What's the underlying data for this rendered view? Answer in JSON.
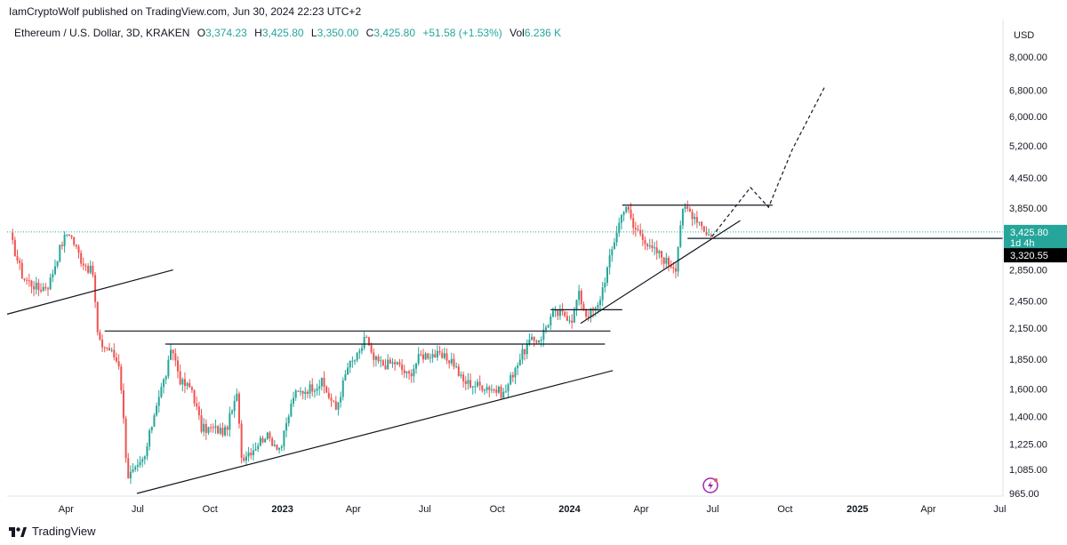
{
  "header": {
    "publisher_line": "IamCryptoWolf published on TradingView.com, Jun 30, 2024 22:23 UTC+2"
  },
  "legend": {
    "symbol": "Ethereum / U.S. Dollar, 3D, KRAKEN",
    "open_label": "O",
    "open": "3,374.23",
    "high_label": "H",
    "high": "3,425.80",
    "low_label": "L",
    "low": "3,350.00",
    "close_label": "C",
    "close": "3,425.80",
    "change": "+51.58 (+1.53%)",
    "vol_label": "Vol",
    "vol": "6.236 K"
  },
  "price_axis": {
    "currency": "USD",
    "current_price": "3,425.80",
    "countdown": "1d 4h",
    "marker_price": "3,320.55"
  },
  "footer": {
    "brand": "TradingView"
  },
  "colors": {
    "up": "#26a69a",
    "down": "#ef5350",
    "line": "#131722",
    "price_tag": "#26a69a",
    "marker_tag": "#000000",
    "icon": "#9c27b0"
  },
  "chart_data": {
    "type": "candlestick",
    "timeframe": "3D",
    "y_scale": "log",
    "ylim": [
      950,
      9000
    ],
    "y_ticks": [
      {
        "value": 8000,
        "label": "8,000.00"
      },
      {
        "value": 6800,
        "label": "6,800.00"
      },
      {
        "value": 6000,
        "label": "6,000.00"
      },
      {
        "value": 5200,
        "label": "5,200.00"
      },
      {
        "value": 4450,
        "label": "4,450.00"
      },
      {
        "value": 3850,
        "label": "3,850.00"
      },
      {
        "value": 2850,
        "label": "2,850.00"
      },
      {
        "value": 2450,
        "label": "2,450.00"
      },
      {
        "value": 2150,
        "label": "2,150.00"
      },
      {
        "value": 1850,
        "label": "1,850.00"
      },
      {
        "value": 1600,
        "label": "1,600.00"
      },
      {
        "value": 1400,
        "label": "1,400.00"
      },
      {
        "value": 1225,
        "label": "1,225.00"
      },
      {
        "value": 1085,
        "label": "1,085.00"
      },
      {
        "value": 965,
        "label": "965.00"
      }
    ],
    "x_ticks": [
      {
        "date": "2022-04-01",
        "label": "Apr",
        "year": false
      },
      {
        "date": "2022-07-01",
        "label": "Jul",
        "year": false
      },
      {
        "date": "2022-10-01",
        "label": "Oct",
        "year": false
      },
      {
        "date": "2023-01-01",
        "label": "2023",
        "year": true
      },
      {
        "date": "2023-04-01",
        "label": "Apr",
        "year": false
      },
      {
        "date": "2023-07-01",
        "label": "Jul",
        "year": false
      },
      {
        "date": "2023-10-01",
        "label": "Oct",
        "year": false
      },
      {
        "date": "2024-01-01",
        "label": "2024",
        "year": true
      },
      {
        "date": "2024-04-01",
        "label": "Apr",
        "year": false
      },
      {
        "date": "2024-07-01",
        "label": "Jul",
        "year": false
      },
      {
        "date": "2024-10-01",
        "label": "Oct",
        "year": false
      },
      {
        "date": "2025-01-01",
        "label": "2025",
        "year": true
      },
      {
        "date": "2025-04-01",
        "label": "Apr",
        "year": false
      },
      {
        "date": "2025-07-01",
        "label": "Jul",
        "year": false
      }
    ],
    "x_range": [
      "2022-01-16",
      "2025-07-05"
    ],
    "price_path": [
      [
        "2022-01-20",
        3350
      ],
      [
        "2022-02-05",
        2750
      ],
      [
        "2022-02-25",
        2600
      ],
      [
        "2022-03-10",
        2650
      ],
      [
        "2022-03-25",
        3200
      ],
      [
        "2022-04-04",
        3450
      ],
      [
        "2022-04-20",
        3000
      ],
      [
        "2022-05-05",
        2800
      ],
      [
        "2022-05-12",
        2000
      ],
      [
        "2022-05-25",
        1950
      ],
      [
        "2022-06-08",
        1800
      ],
      [
        "2022-06-18",
        1050
      ],
      [
        "2022-06-30",
        1080
      ],
      [
        "2022-07-10",
        1150
      ],
      [
        "2022-07-25",
        1500
      ],
      [
        "2022-08-05",
        1700
      ],
      [
        "2022-08-14",
        1950
      ],
      [
        "2022-08-25",
        1650
      ],
      [
        "2022-09-08",
        1600
      ],
      [
        "2022-09-20",
        1320
      ],
      [
        "2022-10-05",
        1320
      ],
      [
        "2022-10-20",
        1300
      ],
      [
        "2022-11-05",
        1560
      ],
      [
        "2022-11-10",
        1150
      ],
      [
        "2022-11-25",
        1200
      ],
      [
        "2022-12-10",
        1280
      ],
      [
        "2022-12-30",
        1200
      ],
      [
        "2023-01-15",
        1550
      ],
      [
        "2023-02-01",
        1600
      ],
      [
        "2023-02-20",
        1650
      ],
      [
        "2023-03-10",
        1450
      ],
      [
        "2023-03-25",
        1780
      ],
      [
        "2023-04-10",
        1900
      ],
      [
        "2023-04-16",
        2100
      ],
      [
        "2023-04-25",
        1850
      ],
      [
        "2023-05-10",
        1800
      ],
      [
        "2023-05-25",
        1820
      ],
      [
        "2023-06-10",
        1700
      ],
      [
        "2023-06-25",
        1880
      ],
      [
        "2023-07-10",
        1900
      ],
      [
        "2023-07-20",
        1870
      ],
      [
        "2023-08-05",
        1840
      ],
      [
        "2023-08-18",
        1660
      ],
      [
        "2023-09-05",
        1630
      ],
      [
        "2023-09-20",
        1620
      ],
      [
        "2023-10-10",
        1560
      ],
      [
        "2023-10-25",
        1800
      ],
      [
        "2023-11-10",
        2000
      ],
      [
        "2023-11-25",
        2050
      ],
      [
        "2023-12-10",
        2300
      ],
      [
        "2023-12-25",
        2300
      ],
      [
        "2024-01-05",
        2250
      ],
      [
        "2024-01-12",
        2550
      ],
      [
        "2024-01-22",
        2300
      ],
      [
        "2024-02-05",
        2350
      ],
      [
        "2024-02-20",
        2950
      ],
      [
        "2024-03-01",
        3450
      ],
      [
        "2024-03-12",
        3950
      ],
      [
        "2024-03-22",
        3500
      ],
      [
        "2024-04-02",
        3400
      ],
      [
        "2024-04-12",
        3150
      ],
      [
        "2024-04-22",
        3100
      ],
      [
        "2024-05-05",
        2950
      ],
      [
        "2024-05-15",
        2900
      ],
      [
        "2024-05-22",
        3700
      ],
      [
        "2024-05-28",
        3850
      ],
      [
        "2024-06-08",
        3700
      ],
      [
        "2024-06-18",
        3550
      ],
      [
        "2024-06-24",
        3350
      ],
      [
        "2024-06-30",
        3425.8
      ]
    ],
    "drawings": {
      "trendlines": [
        {
          "from": [
            "2022-01-16",
            2300
          ],
          "to": [
            "2022-08-15",
            2850
          ]
        },
        {
          "from": [
            "2022-06-30",
            965
          ],
          "to": [
            "2024-02-25",
            1750
          ]
        },
        {
          "from": [
            "2024-01-15",
            2200
          ],
          "to": [
            "2024-08-05",
            3620
          ]
        }
      ],
      "horizontal_levels": [
        {
          "from": "2022-05-20",
          "to": "2024-02-22",
          "price": 2120
        },
        {
          "from": "2022-08-05",
          "to": "2024-02-15",
          "price": 1990
        },
        {
          "from": "2023-12-08",
          "to": "2024-03-08",
          "price": 2350
        },
        {
          "from": "2024-03-08",
          "to": "2024-09-15",
          "price": 3900
        },
        {
          "from": "2024-05-30",
          "to": "2025-07-05",
          "price": 3320.55
        }
      ],
      "projection_path": [
        [
          "2024-06-30",
          3350
        ],
        [
          "2024-08-18",
          4250
        ],
        [
          "2024-09-10",
          3860
        ],
        [
          "2024-10-10",
          5100
        ],
        [
          "2024-11-20",
          6900
        ]
      ]
    }
  }
}
